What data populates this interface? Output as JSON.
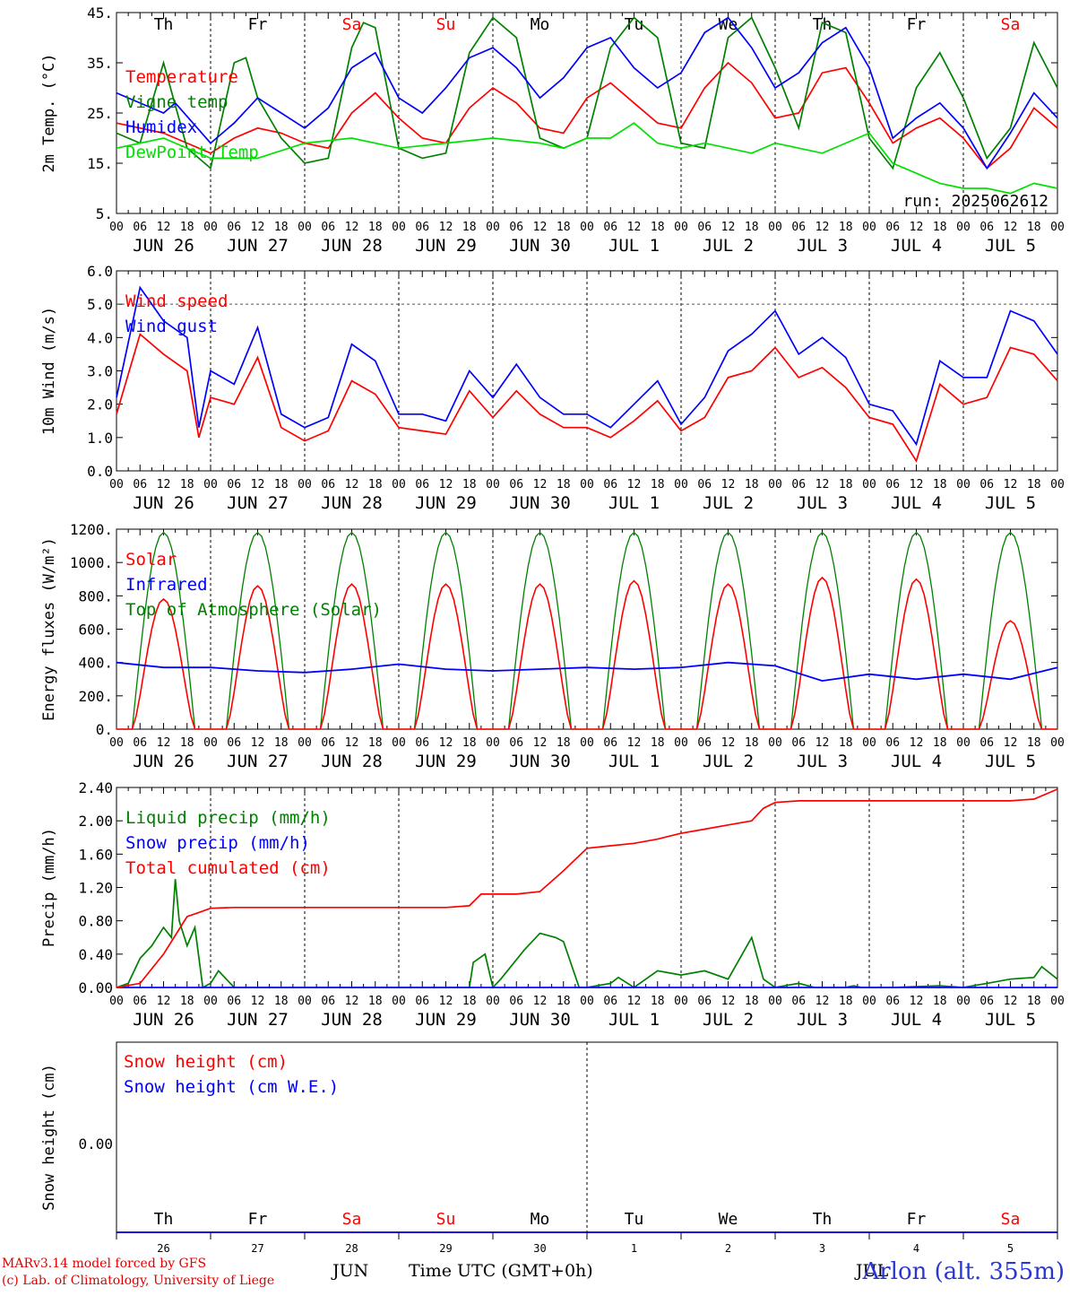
{
  "run_label": "run: 2025062612",
  "station_label": "Arlon (alt. 355m)",
  "model_credit": "MARv3.14 model forced by GFS",
  "lab_credit": "(c) Lab. of Climatology, University of Liege",
  "time_axis_title": "Time UTC (GMT+0h)",
  "month_labels": [
    "JUN",
    "JUL"
  ],
  "days": [
    {
      "weekday": "Th",
      "date": "JUN 26",
      "daynum": "26",
      "weekend": false
    },
    {
      "weekday": "Fr",
      "date": "JUN 27",
      "daynum": "27",
      "weekend": false
    },
    {
      "weekday": "Sa",
      "date": "JUN 28",
      "daynum": "28",
      "weekend": true
    },
    {
      "weekday": "Su",
      "date": "JUN 29",
      "daynum": "29",
      "weekend": true
    },
    {
      "weekday": "Mo",
      "date": "JUN 30",
      "daynum": "30",
      "weekend": false
    },
    {
      "weekday": "Tu",
      "date": "JUL  1",
      "daynum": "1",
      "weekend": false
    },
    {
      "weekday": "We",
      "date": "JUL  2",
      "daynum": "2",
      "weekend": false
    },
    {
      "weekday": "Th",
      "date": "JUL  3",
      "daynum": "3",
      "weekend": false
    },
    {
      "weekday": "Fr",
      "date": "JUL  4",
      "daynum": "4",
      "weekend": false
    },
    {
      "weekday": "Sa",
      "date": "JUL  5",
      "daynum": "5",
      "weekend": true
    }
  ],
  "hour_ticks": [
    "00",
    "06",
    "12",
    "18"
  ],
  "colors": {
    "red": "#ff0000",
    "green": "#008000",
    "blue": "#0000ff",
    "lime": "#00e000",
    "weekend": "#ff0000",
    "weekday": "#000000"
  },
  "chart_data": [
    {
      "type": "line",
      "ylabel": "2m Temp. (°C)",
      "ylim": [
        5,
        45
      ],
      "yticks": [
        "5.",
        "15.",
        "25.",
        "35.",
        "45."
      ],
      "yticks_values": [
        5,
        15,
        25,
        35,
        45
      ],
      "x_unit": "hours since JUN 26 00 UTC",
      "x_range": [
        0,
        240
      ],
      "show_weekdays": true,
      "series": [
        {
          "name": "Temperature",
          "color": "#ff0000",
          "x": [
            0,
            12,
            15,
            24,
            30,
            36,
            42,
            48,
            54,
            60,
            66,
            72,
            78,
            84,
            90,
            96,
            102,
            108,
            114,
            120,
            126,
            132,
            138,
            144,
            150,
            156,
            162,
            168,
            174,
            180,
            186,
            192,
            198,
            204,
            210,
            216,
            222,
            228,
            234,
            240
          ],
          "y": [
            23,
            21,
            20,
            17,
            20,
            22,
            21,
            19,
            18,
            25,
            29,
            24,
            20,
            19,
            26,
            30,
            27,
            22,
            21,
            28,
            31,
            27,
            23,
            22,
            30,
            35,
            31,
            24,
            25,
            33,
            34,
            27,
            19,
            22,
            24,
            20,
            14,
            18,
            26,
            22
          ]
        },
        {
          "name": "Vigne temp",
          "color": "#008000",
          "x": [
            0,
            6,
            12,
            18,
            24,
            30,
            33,
            36,
            42,
            48,
            54,
            60,
            63,
            66,
            72,
            78,
            84,
            90,
            96,
            102,
            108,
            114,
            120,
            126,
            132,
            138,
            144,
            150,
            156,
            162,
            168,
            174,
            180,
            186,
            192,
            198,
            204,
            210,
            216,
            222,
            228,
            234,
            240
          ],
          "y": [
            21,
            19,
            35,
            18,
            14,
            35,
            36,
            28,
            20,
            15,
            16,
            38,
            43,
            42,
            18,
            16,
            17,
            37,
            44,
            40,
            20,
            18,
            20,
            38,
            44,
            40,
            19,
            18,
            40,
            44,
            34,
            22,
            43,
            41,
            20,
            14,
            30,
            37,
            28,
            16,
            22,
            39,
            30
          ]
        },
        {
          "name": "Humidex",
          "color": "#0000ff",
          "x": [
            0,
            12,
            15,
            24,
            30,
            36,
            42,
            48,
            54,
            60,
            66,
            72,
            78,
            84,
            90,
            96,
            102,
            108,
            114,
            120,
            126,
            132,
            138,
            144,
            150,
            156,
            162,
            168,
            174,
            180,
            186,
            192,
            198,
            204,
            210,
            216,
            222,
            228,
            234,
            240
          ],
          "y": [
            29,
            25,
            27,
            19,
            23,
            28,
            25,
            22,
            26,
            34,
            37,
            28,
            25,
            30,
            36,
            38,
            34,
            28,
            32,
            38,
            40,
            34,
            30,
            33,
            41,
            44,
            38,
            30,
            33,
            39,
            42,
            34,
            20,
            24,
            27,
            22,
            14,
            21,
            29,
            24
          ]
        },
        {
          "name": "DewPoint Temp",
          "color": "#00e000",
          "x": [
            0,
            12,
            24,
            36,
            48,
            60,
            72,
            84,
            96,
            108,
            114,
            120,
            126,
            132,
            138,
            144,
            150,
            156,
            162,
            168,
            174,
            180,
            186,
            192,
            198,
            204,
            210,
            216,
            222,
            228,
            234,
            240
          ],
          "y": [
            18,
            20,
            16,
            16,
            19,
            20,
            18,
            19,
            20,
            19,
            18,
            20,
            20,
            23,
            19,
            18,
            19,
            18,
            17,
            19,
            18,
            17,
            19,
            21,
            15,
            13,
            11,
            10,
            10,
            9,
            11,
            10
          ]
        }
      ]
    },
    {
      "type": "line",
      "ylabel": "10m Wind (m/s)",
      "ylim": [
        0,
        6
      ],
      "yticks": [
        "0.0",
        "1.0",
        "2.0",
        "3.0",
        "4.0",
        "5.0",
        "6.0"
      ],
      "yticks_values": [
        0,
        1,
        2,
        3,
        4,
        5,
        6
      ],
      "x_range": [
        0,
        240
      ],
      "dashed_reference": 5.0,
      "series": [
        {
          "name": "Wind speed",
          "color": "#ff0000",
          "x": [
            0,
            6,
            12,
            18,
            21,
            24,
            30,
            36,
            42,
            48,
            54,
            60,
            66,
            72,
            78,
            84,
            90,
            96,
            102,
            108,
            114,
            120,
            126,
            132,
            138,
            144,
            150,
            156,
            162,
            168,
            174,
            180,
            186,
            192,
            198,
            204,
            210,
            216,
            222,
            228,
            234,
            240
          ],
          "y": [
            1.7,
            4.1,
            3.5,
            3.0,
            1.0,
            2.2,
            2.0,
            3.4,
            1.3,
            0.9,
            1.2,
            2.7,
            2.3,
            1.3,
            1.2,
            1.1,
            2.4,
            1.6,
            2.4,
            1.7,
            1.3,
            1.3,
            1.0,
            1.5,
            2.1,
            1.2,
            1.6,
            2.8,
            3.0,
            3.7,
            2.8,
            3.1,
            2.5,
            1.6,
            1.4,
            0.3,
            2.6,
            2.0,
            2.2,
            3.7,
            3.5,
            2.7
          ]
        },
        {
          "name": "Wind gust",
          "color": "#0000ff",
          "x": [
            0,
            6,
            12,
            18,
            21,
            24,
            30,
            36,
            42,
            48,
            54,
            60,
            66,
            72,
            78,
            84,
            90,
            96,
            102,
            108,
            114,
            120,
            126,
            132,
            138,
            144,
            150,
            156,
            162,
            168,
            174,
            180,
            186,
            192,
            198,
            204,
            210,
            216,
            222,
            228,
            234,
            240
          ],
          "y": [
            2.2,
            5.5,
            4.5,
            4.0,
            1.3,
            3.0,
            2.6,
            4.3,
            1.7,
            1.3,
            1.6,
            3.8,
            3.3,
            1.7,
            1.7,
            1.5,
            3.0,
            2.2,
            3.2,
            2.2,
            1.7,
            1.7,
            1.3,
            2.0,
            2.7,
            1.4,
            2.2,
            3.6,
            4.1,
            4.8,
            3.5,
            4.0,
            3.4,
            2.0,
            1.8,
            0.8,
            3.3,
            2.8,
            2.8,
            4.8,
            4.5,
            3.5
          ]
        }
      ]
    },
    {
      "type": "line",
      "ylabel": "Energy fluxes (W/m²)",
      "ylim": [
        0,
        1200
      ],
      "yticks": [
        "0.",
        "200.",
        "400.",
        "600.",
        "800.",
        "1000.",
        "1200."
      ],
      "yticks_values": [
        0,
        200,
        400,
        600,
        800,
        1000,
        1200
      ],
      "x_range": [
        0,
        240
      ],
      "solar_peaks": [
        780,
        860,
        870,
        870,
        870,
        890,
        870,
        910,
        900,
        650
      ],
      "toa_peak": 1180,
      "infrared": {
        "x": [
          0,
          12,
          24,
          36,
          48,
          60,
          72,
          84,
          96,
          108,
          120,
          132,
          144,
          156,
          168,
          180,
          192,
          204,
          216,
          228,
          240
        ],
        "y": [
          400,
          370,
          370,
          350,
          340,
          360,
          390,
          360,
          350,
          360,
          370,
          360,
          370,
          400,
          380,
          290,
          330,
          300,
          330,
          300,
          370
        ]
      },
      "series": [
        {
          "name": "Solar",
          "color": "#ff0000"
        },
        {
          "name": "Infrared",
          "color": "#0000ff"
        },
        {
          "name": "Top of Atmosphere (Solar)",
          "color": "#008000"
        }
      ]
    },
    {
      "type": "line",
      "ylabel": "Precip (mm/h)",
      "ylim": [
        0,
        2.4
      ],
      "yticks": [
        "0.00",
        "0.40",
        "0.80",
        "1.20",
        "1.60",
        "2.00",
        "2.40"
      ],
      "yticks_values": [
        0,
        0.4,
        0.8,
        1.2,
        1.6,
        2.0,
        2.4
      ],
      "x_range": [
        0,
        240
      ],
      "series": [
        {
          "name": "Liquid precip (mm/h)",
          "color": "#008000",
          "x": [
            0,
            3,
            6,
            9,
            12,
            14,
            15,
            16,
            18,
            20,
            22,
            24,
            26,
            30,
            90,
            91,
            94,
            96,
            98,
            104,
            108,
            112,
            114,
            118,
            120,
            126,
            128,
            132,
            138,
            144,
            150,
            156,
            162,
            165,
            168,
            174,
            178,
            180,
            186,
            188,
            190,
            198,
            210,
            216,
            222,
            228,
            234,
            236,
            240
          ],
          "y": [
            0,
            0.05,
            0.35,
            0.5,
            0.72,
            0.6,
            1.3,
            0.8,
            0.5,
            0.72,
            0,
            0.05,
            0.2,
            0,
            0,
            0.3,
            0.4,
            0,
            0.1,
            0.45,
            0.65,
            0.6,
            0.55,
            0,
            0,
            0.05,
            0.12,
            0,
            0.2,
            0.15,
            0.2,
            0.1,
            0.6,
            0.1,
            0,
            0.05,
            0,
            0,
            0,
            0.02,
            0,
            0,
            0.02,
            0,
            0.05,
            0.1,
            0.12,
            0.25,
            0.1
          ]
        },
        {
          "name": "Snow precip (mm/h)",
          "color": "#0000ff",
          "x": [
            0,
            240
          ],
          "y": [
            0,
            0
          ]
        },
        {
          "name": "Total cumulated (cm)",
          "color": "#ff0000",
          "x": [
            0,
            6,
            12,
            18,
            21,
            24,
            30,
            36,
            84,
            90,
            93,
            96,
            102,
            108,
            114,
            120,
            126,
            132,
            138,
            144,
            150,
            156,
            162,
            165,
            168,
            174,
            180,
            186,
            192,
            198,
            204,
            210,
            216,
            222,
            228,
            234,
            240
          ],
          "y": [
            0,
            0.05,
            0.4,
            0.85,
            0.9,
            0.95,
            0.96,
            0.96,
            0.96,
            0.98,
            1.12,
            1.12,
            1.12,
            1.15,
            1.4,
            1.67,
            1.7,
            1.73,
            1.78,
            1.85,
            1.9,
            1.95,
            2.0,
            2.15,
            2.22,
            2.24,
            2.24,
            2.24,
            2.24,
            2.24,
            2.24,
            2.24,
            2.24,
            2.24,
            2.24,
            2.26,
            2.38
          ]
        }
      ]
    },
    {
      "type": "line",
      "ylabel": "Snow height (cm)",
      "ytick_label": "0.00",
      "x_range": [
        0,
        240
      ],
      "series": [
        {
          "name": "Snow height (cm)",
          "color": "#ff0000",
          "x": [
            0,
            240
          ],
          "y": [
            0,
            0
          ]
        },
        {
          "name": "Snow height (cm W.E.)",
          "color": "#0000ff",
          "x": [
            0,
            240
          ],
          "y": [
            0,
            0
          ]
        }
      ]
    }
  ]
}
